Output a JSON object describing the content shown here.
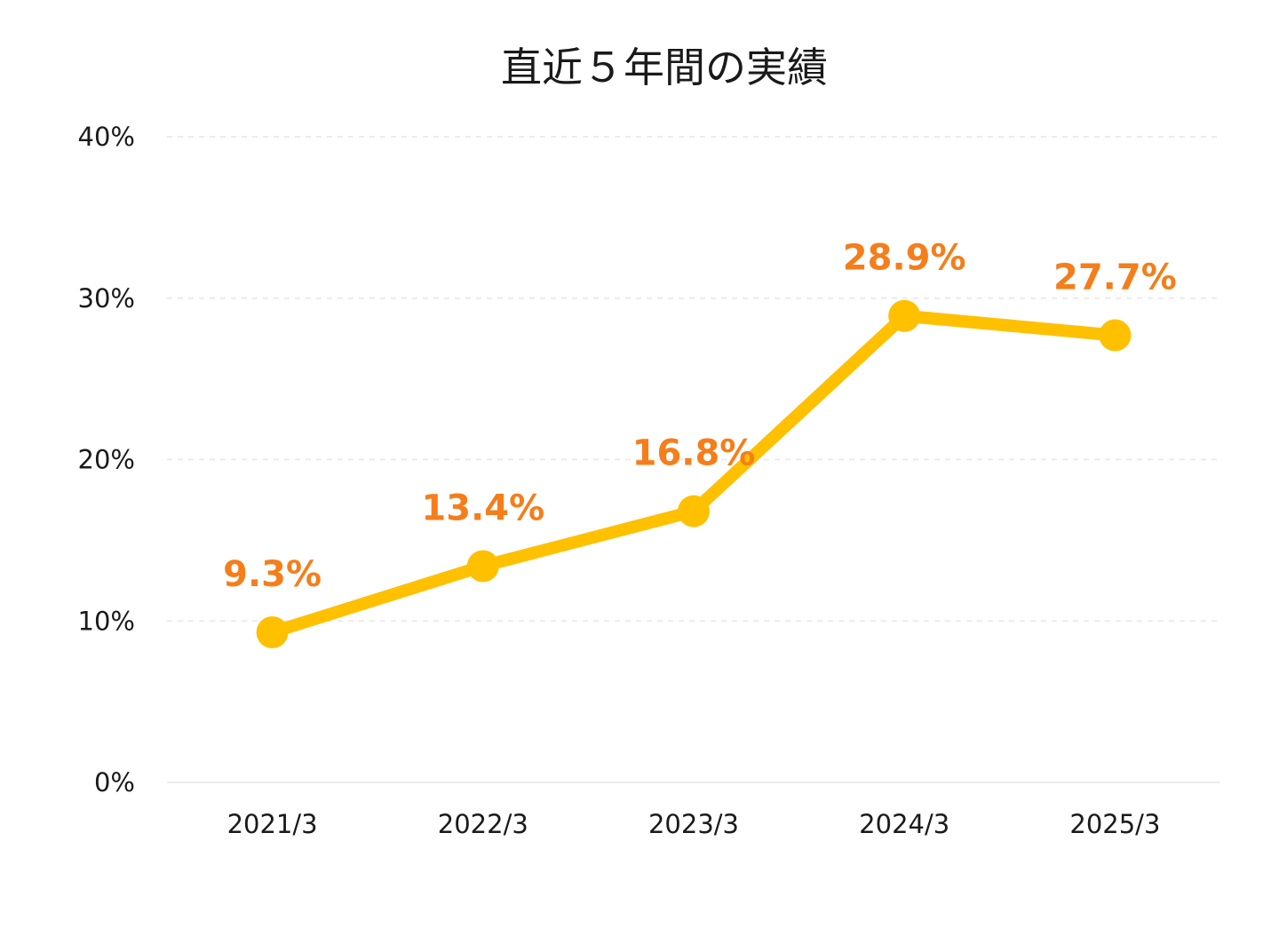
{
  "chart_data": {
    "type": "line",
    "title": "直近５年間の実績",
    "xlabel": "",
    "ylabel": "",
    "categories": [
      "2021/3",
      "2022/3",
      "2023/3",
      "2024/3",
      "2025/3"
    ],
    "series": [
      {
        "values": [
          9.3,
          13.4,
          16.8,
          28.9,
          27.7
        ],
        "data_labels": [
          "9.3%",
          "13.4%",
          "16.8%",
          "28.9%",
          "27.7%"
        ]
      }
    ],
    "ylim": [
      0,
      40
    ],
    "y_ticks": [
      0,
      10,
      20,
      30,
      40
    ],
    "y_tick_labels": [
      "0%",
      "10%",
      "20%",
      "30%",
      "40%"
    ],
    "grid": "horizontal dashed",
    "legend": "none",
    "colors": {
      "line": "#FFC000",
      "marker": "#FFC000",
      "data_label": "#F57E1A",
      "grid": "#E6E6E6",
      "text": "#1A1A1A"
    }
  }
}
